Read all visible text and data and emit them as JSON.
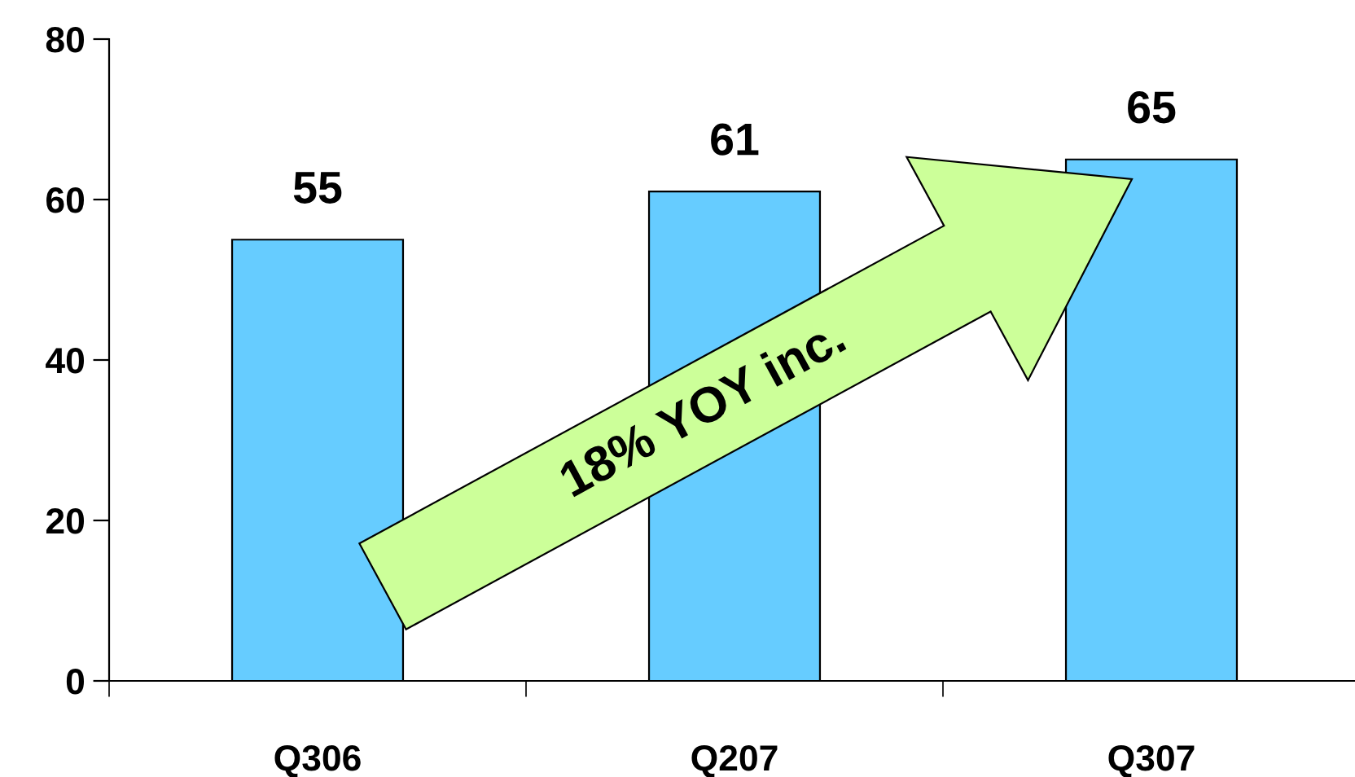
{
  "chart_data": {
    "type": "bar",
    "categories": [
      "Q306",
      "Q207",
      "Q307"
    ],
    "values": [
      55,
      61,
      65
    ],
    "color": "#66ccff",
    "data_labels": true,
    "ylim": [
      0,
      80
    ],
    "yticks": [
      0,
      20,
      40,
      60,
      80
    ],
    "grid": false,
    "annotations": [
      "18% YOY inc."
    ]
  }
}
